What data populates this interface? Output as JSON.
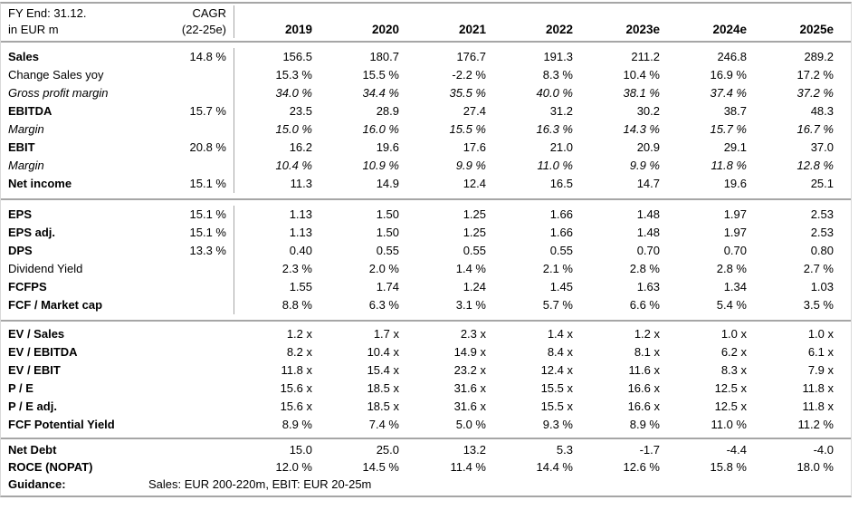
{
  "header": {
    "fy_end": "FY End: 31.12.",
    "unit": "in EUR m",
    "cagr_label": "CAGR",
    "cagr_period": "(22-25e)",
    "years": [
      "2019",
      "2020",
      "2021",
      "2022",
      "2023e",
      "2024e",
      "2025e"
    ]
  },
  "sections": [
    {
      "rows": [
        {
          "label": "Sales",
          "style": "bold",
          "cagr": "14.8 %",
          "values": [
            "156.5",
            "180.7",
            "176.7",
            "191.3",
            "211.2",
            "246.8",
            "289.2"
          ]
        },
        {
          "label": "Change Sales yoy",
          "style": "regular",
          "cagr": "",
          "values": [
            "15.3 %",
            "15.5 %",
            "-2.2 %",
            "8.3 %",
            "10.4 %",
            "16.9 %",
            "17.2 %"
          ]
        },
        {
          "label": "Gross profit margin",
          "style": "italic",
          "cagr": "",
          "values": [
            "34.0 %",
            "34.4 %",
            "35.5 %",
            "40.0 %",
            "38.1 %",
            "37.4 %",
            "37.2 %"
          ]
        },
        {
          "label": "EBITDA",
          "style": "bold",
          "cagr": "15.7 %",
          "values": [
            "23.5",
            "28.9",
            "27.4",
            "31.2",
            "30.2",
            "38.7",
            "48.3"
          ]
        },
        {
          "label": "Margin",
          "style": "italic",
          "cagr": "",
          "values": [
            "15.0 %",
            "16.0 %",
            "15.5 %",
            "16.3 %",
            "14.3 %",
            "15.7 %",
            "16.7 %"
          ]
        },
        {
          "label": "EBIT",
          "style": "bold",
          "cagr": "20.8 %",
          "values": [
            "16.2",
            "19.6",
            "17.6",
            "21.0",
            "20.9",
            "29.1",
            "37.0"
          ]
        },
        {
          "label": "Margin",
          "style": "italic",
          "cagr": "",
          "values": [
            "10.4 %",
            "10.9 %",
            "9.9 %",
            "11.0 %",
            "9.9 %",
            "11.8 %",
            "12.8 %"
          ]
        },
        {
          "label": "Net income",
          "style": "bold",
          "cagr": "15.1 %",
          "values": [
            "11.3",
            "14.9",
            "12.4",
            "16.5",
            "14.7",
            "19.6",
            "25.1"
          ]
        }
      ]
    },
    {
      "rows": [
        {
          "label": "EPS",
          "style": "bold",
          "cagr": "15.1 %",
          "values": [
            "1.13",
            "1.50",
            "1.25",
            "1.66",
            "1.48",
            "1.97",
            "2.53"
          ]
        },
        {
          "label": "EPS adj.",
          "style": "bold",
          "cagr": "15.1 %",
          "values": [
            "1.13",
            "1.50",
            "1.25",
            "1.66",
            "1.48",
            "1.97",
            "2.53"
          ]
        },
        {
          "label": "DPS",
          "style": "bold",
          "cagr": "13.3 %",
          "values": [
            "0.40",
            "0.55",
            "0.55",
            "0.55",
            "0.70",
            "0.70",
            "0.80"
          ]
        },
        {
          "label": "Dividend Yield",
          "style": "regular",
          "cagr": "",
          "values": [
            "2.3 %",
            "2.0 %",
            "1.4 %",
            "2.1 %",
            "2.8 %",
            "2.8 %",
            "2.7 %"
          ]
        },
        {
          "label": "FCFPS",
          "style": "bold",
          "cagr": "",
          "values": [
            "1.55",
            "1.74",
            "1.24",
            "1.45",
            "1.63",
            "1.34",
            "1.03"
          ]
        },
        {
          "label": "FCF / Market cap",
          "style": "bold",
          "cagr": "",
          "values": [
            "8.8 %",
            "6.3 %",
            "3.1 %",
            "5.7 %",
            "6.6 %",
            "5.4 %",
            "3.5 %"
          ]
        }
      ]
    },
    {
      "rows": [
        {
          "label": "EV / Sales",
          "style": "bold",
          "cagr": "",
          "values": [
            "1.2 x",
            "1.7 x",
            "2.3 x",
            "1.4 x",
            "1.2 x",
            "1.0 x",
            "1.0 x"
          ]
        },
        {
          "label": "EV / EBITDA",
          "style": "bold",
          "cagr": "",
          "values": [
            "8.2 x",
            "10.4 x",
            "14.9 x",
            "8.4 x",
            "8.1 x",
            "6.2 x",
            "6.1 x"
          ]
        },
        {
          "label": "EV / EBIT",
          "style": "bold",
          "cagr": "",
          "values": [
            "11.8 x",
            "15.4 x",
            "23.2 x",
            "12.4 x",
            "11.6 x",
            "8.3 x",
            "7.9 x"
          ]
        },
        {
          "label": "P / E",
          "style": "bold",
          "cagr": "",
          "values": [
            "15.6 x",
            "18.5 x",
            "31.6 x",
            "15.5 x",
            "16.6 x",
            "12.5 x",
            "11.8 x"
          ]
        },
        {
          "label": "P / E adj.",
          "style": "bold",
          "cagr": "",
          "values": [
            "15.6 x",
            "18.5 x",
            "31.6 x",
            "15.5 x",
            "16.6 x",
            "12.5 x",
            "11.8 x"
          ]
        },
        {
          "label": "FCF Potential Yield",
          "style": "bold",
          "cagr": "",
          "values": [
            "8.9 %",
            "7.4 %",
            "5.0 %",
            "9.3 %",
            "8.9 %",
            "11.0 %",
            "11.2 %"
          ]
        }
      ]
    },
    {
      "rows": [
        {
          "label": "Net Debt",
          "style": "bold",
          "cagr": "",
          "values": [
            "15.0",
            "25.0",
            "13.2",
            "5.3",
            "-1.7",
            "-4.4",
            "-4.0"
          ]
        },
        {
          "label": "ROCE (NOPAT)",
          "style": "bold",
          "cagr": "",
          "values": [
            "12.0 %",
            "14.5 %",
            "11.4 %",
            "14.4 %",
            "12.6 %",
            "15.8 %",
            "18.0 %"
          ]
        },
        {
          "label": "Guidance:",
          "style": "bold",
          "cagr": "",
          "span_text": "Sales: EUR 200-220m, EBIT: EUR 20-25m",
          "values": []
        }
      ]
    }
  ],
  "colors": {
    "line": "#a6a6a6",
    "light_border": "#d9d9d9",
    "text": "#000000"
  }
}
